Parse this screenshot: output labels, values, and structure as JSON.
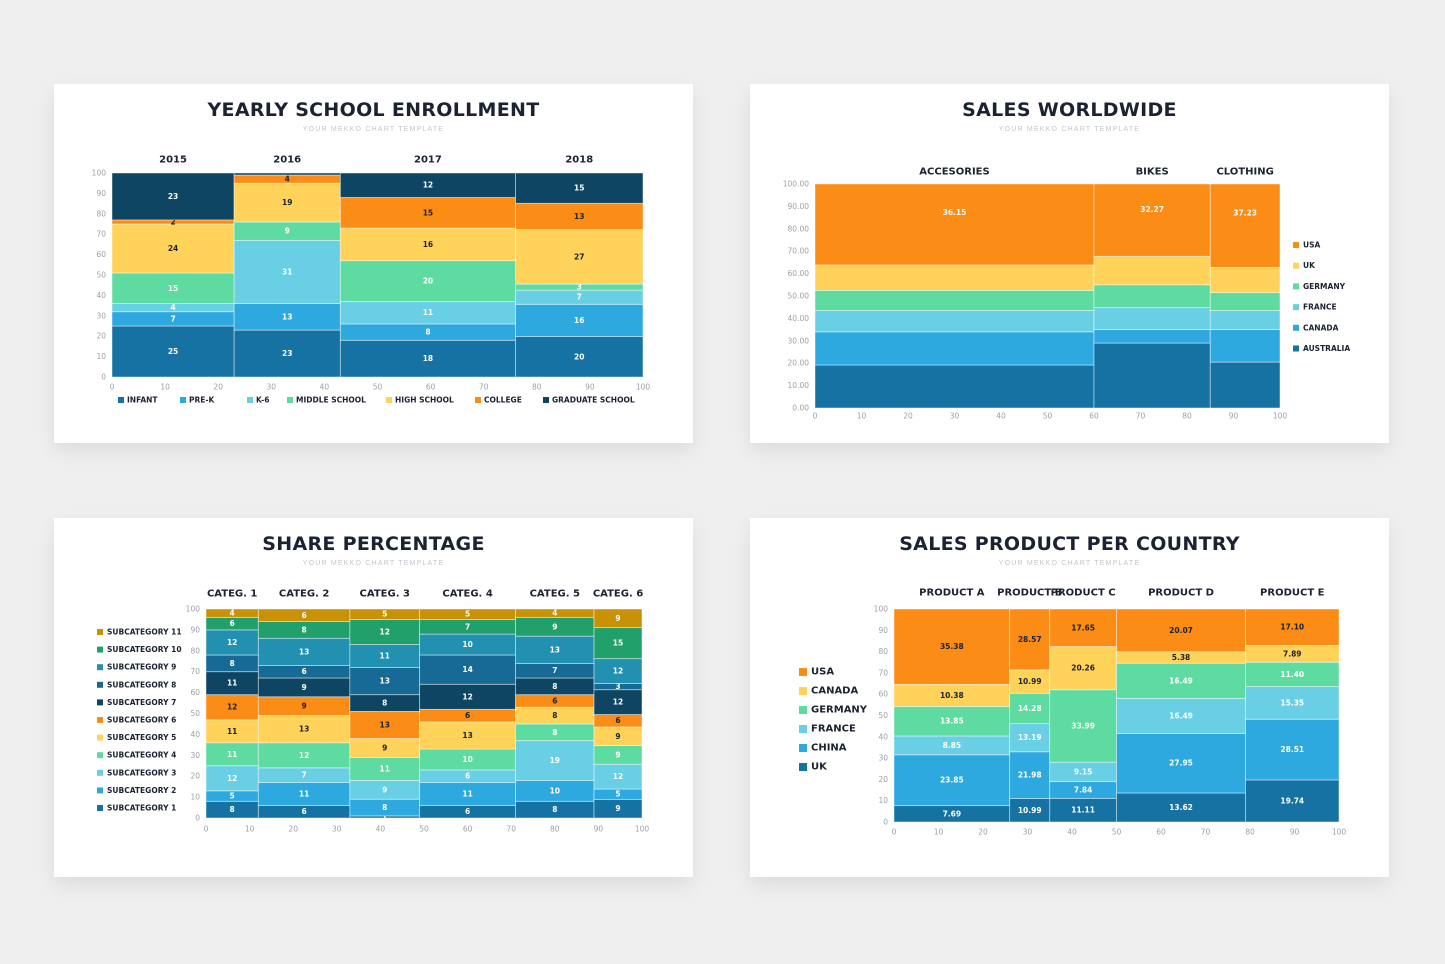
{
  "colors": {
    "infant": "#1572a3",
    "pre_k": "#2ea9df",
    "k6": "#69cfe4",
    "middle": "#5edba1",
    "high": "#ffd259",
    "college": "#fb8c16",
    "graduate": "#0d4563"
  },
  "chart_data": [
    {
      "id": "enrollment",
      "type": "mekko",
      "title": "YEARLY SCHOOL ENROLLMENT",
      "subtitle": "YOUR MEKKO CHART TEMPLATE",
      "categories": [
        "2015",
        "2016",
        "2017",
        "2018"
      ],
      "category_widths": [
        23,
        20,
        33,
        24
      ],
      "series": [
        {
          "name": "INFANT",
          "color": "#1572a3",
          "values": [
            25,
            23,
            18,
            20
          ],
          "label_color": "#ffffff"
        },
        {
          "name": "PRE-K",
          "color": "#2ea9df",
          "values": [
            7,
            13,
            8,
            16
          ],
          "label_color": "#ffffff"
        },
        {
          "name": "K-6",
          "color": "#69cfe4",
          "values": [
            4,
            31,
            11,
            7
          ],
          "label_color": "#ffffff"
        },
        {
          "name": "MIDDLE SCHOOL",
          "color": "#5edba1",
          "values": [
            15,
            9,
            20,
            3
          ],
          "label_color": "#ffffff"
        },
        {
          "name": "HIGH SCHOOL",
          "color": "#ffd259",
          "values": [
            24,
            19,
            16,
            27
          ],
          "label_color": "#1b2231"
        },
        {
          "name": "COLLEGE",
          "color": "#fb8c16",
          "values": [
            2,
            4,
            15,
            13
          ],
          "label_color": "#1b2231"
        },
        {
          "name": "GRADUATE SCHOOL",
          "color": "#0d4563",
          "values": [
            23,
            1,
            12,
            15
          ],
          "label_color": "#ffffff"
        }
      ],
      "hidden_labels": [
        [
          1,
          6
        ]
      ],
      "xlim": [
        0,
        100
      ],
      "ylim": [
        0,
        100
      ],
      "xticks": [
        "0",
        "10",
        "20",
        "30",
        "40",
        "50",
        "60",
        "70",
        "80",
        "90",
        "100"
      ],
      "yticks": [
        "0",
        "10",
        "20",
        "30",
        "40",
        "50",
        "60",
        "70",
        "80",
        "90",
        "100"
      ],
      "legend": "bottom"
    },
    {
      "id": "sales-worldwide",
      "type": "mekko",
      "title": "SALES WORLDWIDE",
      "subtitle": "YOUR MEKKO CHART TEMPLATE",
      "categories": [
        "ACCESORIES",
        "BIKES",
        "CLOTHING"
      ],
      "category_widths": [
        60,
        25,
        15
      ],
      "series": [
        {
          "name": "AUSTRALIA",
          "color": "#1572a3",
          "values": [
            19.2,
            29.0,
            20.5
          ]
        },
        {
          "name": "CANADA",
          "color": "#2ea9df",
          "values": [
            14.8,
            6.0,
            14.5
          ]
        },
        {
          "name": "FRANCE",
          "color": "#69cfe4",
          "values": [
            9.5,
            9.8,
            8.5
          ]
        },
        {
          "name": "GERMANY",
          "color": "#5edba1",
          "values": [
            9.0,
            10.2,
            8.0
          ]
        },
        {
          "name": "UK",
          "color": "#ffd259",
          "values": [
            11.35,
            12.73,
            11.27
          ]
        },
        {
          "name": "USA",
          "color": "#fb8c16",
          "values": [
            36.15,
            32.27,
            37.23
          ]
        }
      ],
      "value_labels": {
        "USA": [
          "36.15",
          "32.27",
          "37.23"
        ]
      },
      "xlim": [
        0,
        100
      ],
      "ylim": [
        0,
        100
      ],
      "xticks": [
        "0",
        "10",
        "20",
        "30",
        "40",
        "50",
        "60",
        "70",
        "80",
        "90",
        "100"
      ],
      "yticks": [
        "0.00",
        "10.00",
        "20.00",
        "30.00",
        "40.00",
        "50.00",
        "60.00",
        "70.00",
        "80.00",
        "90.00",
        "100.00"
      ],
      "legend": "right"
    },
    {
      "id": "share-percentage",
      "type": "mekko",
      "title": "SHARE PERCENTAGE",
      "subtitle": "YOUR MEKKO CHART TEMPLATE",
      "categories": [
        "CATEG. 1",
        "CATEG. 2",
        "CATEG. 3",
        "CATEG. 4",
        "CATEG. 5",
        "CATEG. 6"
      ],
      "category_widths": [
        12,
        21,
        16,
        22,
        18,
        11
      ],
      "series": [
        {
          "name": "SUBCATEGORY 1",
          "color": "#1572a3",
          "values": [
            8,
            6,
            1,
            6,
            8,
            9
          ],
          "label_color": "#ffffff"
        },
        {
          "name": "SUBCATEGORY 2",
          "color": "#2ea9df",
          "values": [
            5,
            11,
            8,
            11,
            10,
            5
          ],
          "label_color": "#ffffff"
        },
        {
          "name": "SUBCATEGORY 3",
          "color": "#69cfe4",
          "values": [
            12,
            7,
            9,
            6,
            19,
            12
          ],
          "label_color": "#ffffff"
        },
        {
          "name": "SUBCATEGORY 4",
          "color": "#5edba1",
          "values": [
            11,
            12,
            11,
            10,
            8,
            9
          ],
          "label_color": "#ffffff"
        },
        {
          "name": "SUBCATEGORY 5",
          "color": "#ffd259",
          "values": [
            11,
            13,
            9,
            13,
            8,
            9
          ],
          "label_color": "#1b2231"
        },
        {
          "name": "SUBCATEGORY 6",
          "color": "#fb8c16",
          "values": [
            12,
            9,
            13,
            6,
            6,
            6
          ],
          "label_color": "#1b2231"
        },
        {
          "name": "SUBCATEGORY 7",
          "color": "#0d4563",
          "values": [
            11,
            9,
            8,
            12,
            8,
            12
          ],
          "label_color": "#ffffff"
        },
        {
          "name": "SUBCATEGORY 8",
          "color": "#176a95",
          "values": [
            8,
            6,
            13,
            14,
            7,
            3
          ],
          "label_color": "#ffffff"
        },
        {
          "name": "SUBCATEGORY 9",
          "color": "#2290b1",
          "values": [
            12,
            13,
            11,
            10,
            13,
            12
          ],
          "label_color": "#ffffff"
        },
        {
          "name": "SUBCATEGORY 10",
          "color": "#22a06b",
          "values": [
            6,
            8,
            12,
            7,
            9,
            15
          ],
          "label_color": "#ffffff"
        },
        {
          "name": "SUBCATEGORY 11",
          "color": "#c99206",
          "values": [
            4,
            6,
            5,
            5,
            4,
            9
          ],
          "label_color": "#ffffff"
        }
      ],
      "xlim": [
        0,
        100
      ],
      "ylim": [
        0,
        100
      ],
      "xticks": [
        "0",
        "10",
        "20",
        "30",
        "40",
        "50",
        "60",
        "70",
        "80",
        "90",
        "100"
      ],
      "yticks": [
        "0",
        "10",
        "20",
        "30",
        "40",
        "50",
        "60",
        "70",
        "80",
        "90",
        "100"
      ],
      "legend": "left"
    },
    {
      "id": "sales-product-country",
      "type": "mekko",
      "title": "SALES PRODUCT PER COUNTRY",
      "subtitle": "YOUR MEKKO CHART TEMPLATE",
      "categories": [
        "PRODUCT A",
        "PRODUCT B",
        "PRODUCT C",
        "PRODUCT D",
        "PRODUCT E"
      ],
      "category_widths": [
        26,
        9,
        15,
        29,
        21
      ],
      "series": [
        {
          "name": "UK",
          "color": "#1572a3",
          "values": [
            7.69,
            10.99,
            11.11,
            13.62,
            19.74
          ],
          "labels": [
            "7.69",
            "10.99",
            "11.11",
            "13.62",
            "19.74"
          ],
          "label_color": "#ffffff"
        },
        {
          "name": "CHINA",
          "color": "#2ea9df",
          "values": [
            23.85,
            21.98,
            7.84,
            27.95,
            28.51
          ],
          "labels": [
            "23.85",
            "21.98",
            "7.84",
            "27.95",
            "28.51"
          ],
          "label_color": "#ffffff"
        },
        {
          "name": "FRANCE",
          "color": "#69cfe4",
          "values": [
            8.85,
            13.19,
            9.15,
            16.49,
            15.35
          ],
          "labels": [
            "8.85",
            "13.19",
            "9.15",
            "16.49",
            "15.35"
          ],
          "label_color": "#ffffff"
        },
        {
          "name": "GERMANY",
          "color": "#5edba1",
          "values": [
            13.85,
            14.28,
            33.99,
            16.49,
            11.4
          ],
          "labels": [
            "13.85",
            "14.28",
            "33.99",
            "16.49",
            "11.40"
          ],
          "label_color": "#ffffff"
        },
        {
          "name": "CANADA",
          "color": "#ffd259",
          "values": [
            10.38,
            10.99,
            20.26,
            5.38,
            7.89
          ],
          "labels": [
            "10.38",
            "10.99",
            "20.26",
            "5.38",
            "7.89"
          ],
          "label_color": "#1b2231"
        },
        {
          "name": "USA",
          "color": "#fb8c16",
          "values": [
            35.38,
            28.57,
            17.65,
            20.07,
            17.1
          ],
          "labels": [
            "35.38",
            "28.57",
            "17.65",
            "20.07",
            "17.10"
          ],
          "label_color": "#1b2231"
        }
      ],
      "xlim": [
        0,
        100
      ],
      "ylim": [
        0,
        100
      ],
      "xticks": [
        "0",
        "10",
        "20",
        "30",
        "40",
        "50",
        "60",
        "70",
        "80",
        "90",
        "100"
      ],
      "yticks": [
        "0",
        "10",
        "20",
        "30",
        "40",
        "50",
        "60",
        "70",
        "80",
        "90",
        "100"
      ],
      "legend": "left"
    }
  ]
}
